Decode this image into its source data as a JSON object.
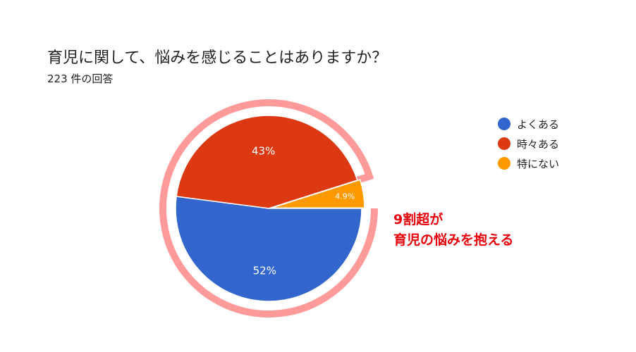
{
  "header": {
    "title": "育児に関して、悩みを感じることはありますか？",
    "response_count": "223 件の回答"
  },
  "chart_data": {
    "type": "pie",
    "title": "育児に関して、悩みを感じることはありますか？",
    "categories": [
      "よくある",
      "時々ある",
      "特にない"
    ],
    "values": [
      52,
      43,
      4.9
    ],
    "labels": [
      "52%",
      "43%",
      "4.9%"
    ],
    "colors": [
      "#3366cc",
      "#dc3912",
      "#ff9900"
    ],
    "legend_position": "right",
    "highlight_color": "#ff9a9a"
  },
  "annotation": {
    "line1": "9割超が",
    "line2": "育児の悩みを抱える",
    "color": "#e8000b"
  }
}
